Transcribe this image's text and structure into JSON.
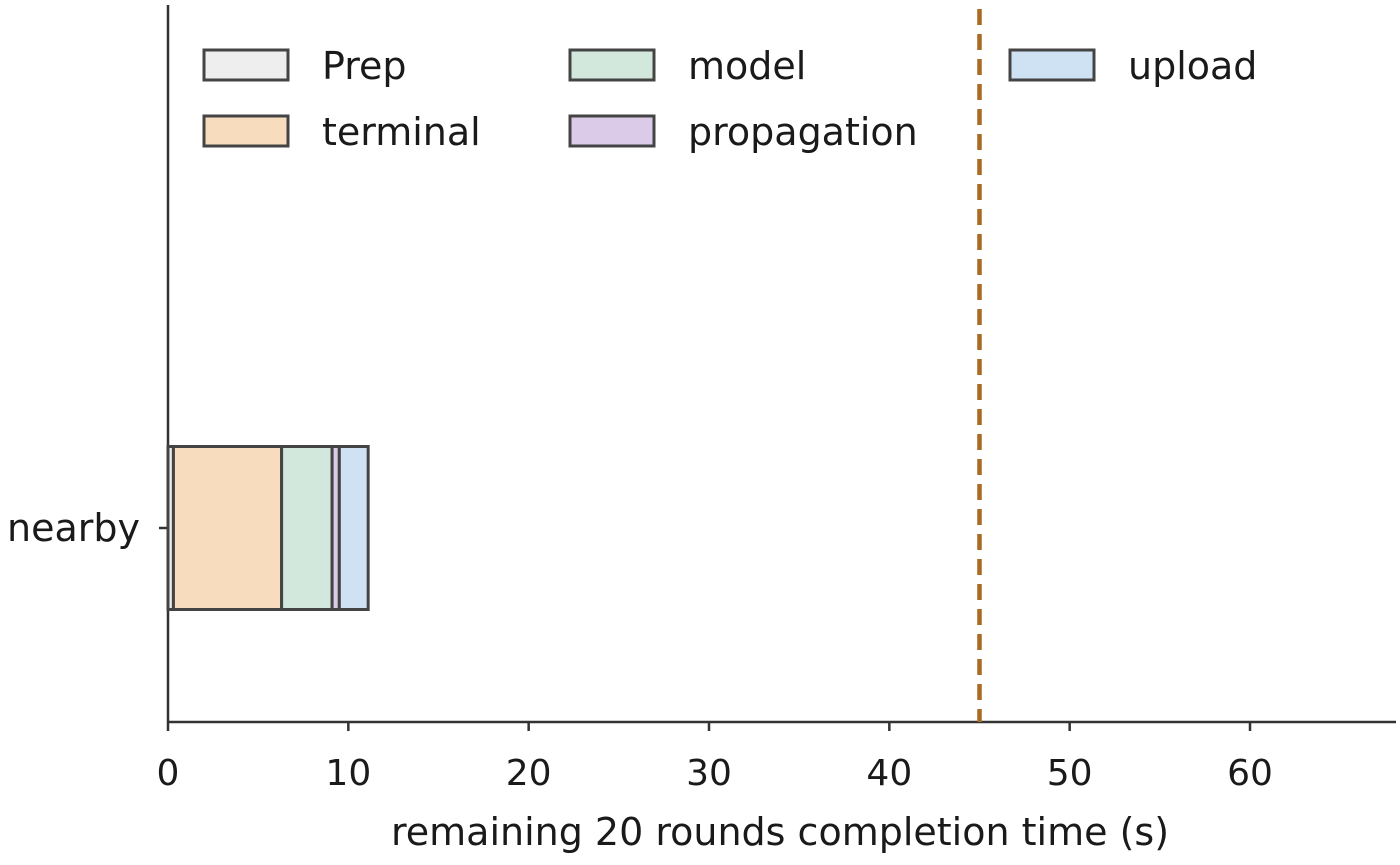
{
  "chart_data": {
    "type": "bar",
    "orientation": "horizontal",
    "stacked": true,
    "title": "",
    "xlabel": "remaining 20 rounds completion time (s)",
    "ylabel": "",
    "xlim": [
      0,
      68
    ],
    "xticks": [
      0,
      10,
      20,
      30,
      40,
      50,
      60
    ],
    "grid": false,
    "legend_position": "top, three columns",
    "categories": [
      "nearby"
    ],
    "series": [
      {
        "name": "Prep",
        "values": [
          0.3
        ],
        "color": "#eeeeee"
      },
      {
        "name": "terminal",
        "values": [
          6.0
        ],
        "color": "#f8dcbe"
      },
      {
        "name": "model",
        "values": [
          2.8
        ],
        "color": "#d2e8dc"
      },
      {
        "name": "propagation",
        "values": [
          0.4
        ],
        "color": "#dccbe8"
      },
      {
        "name": "upload",
        "values": [
          1.6
        ],
        "color": "#cfe2f3"
      }
    ],
    "reference_line": {
      "x": 45,
      "style": "dashed",
      "color": "#a86a25"
    },
    "edge_color": "#444444"
  }
}
